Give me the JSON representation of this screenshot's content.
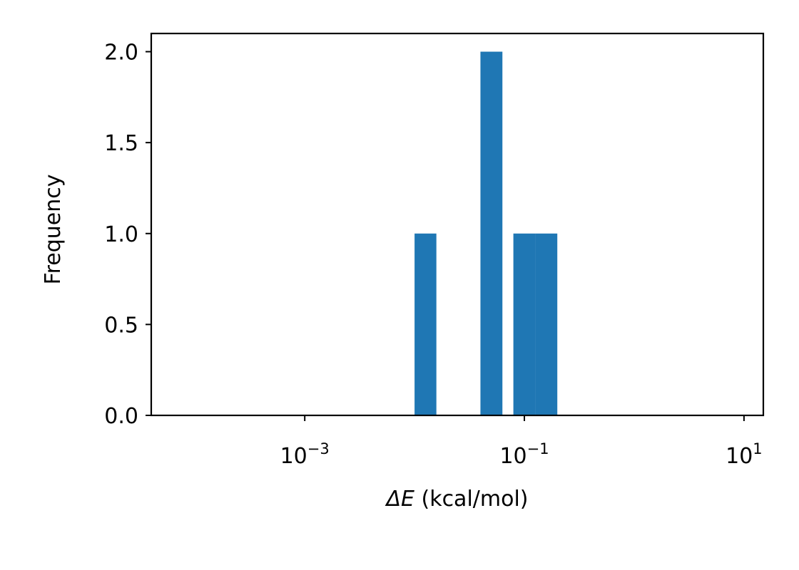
{
  "chart_data": {
    "type": "bar",
    "title": "",
    "xlabel_symbol": "ΔE",
    "xlabel_unit": " (kcal/mol)",
    "ylabel": "Frequency",
    "x_scale": "log",
    "xlim": [
      4e-05,
      15
    ],
    "ylim": [
      0,
      2.1
    ],
    "bar_color": "#1f77b4",
    "grid": false,
    "bins": [
      {
        "x_start": 0.01,
        "x_end": 0.0158,
        "count": 1
      },
      {
        "x_start": 0.0398,
        "x_end": 0.0631,
        "count": 2
      },
      {
        "x_start": 0.0794,
        "x_end": 0.1259,
        "count": 1
      },
      {
        "x_start": 0.1259,
        "x_end": 0.1995,
        "count": 1
      }
    ],
    "y_ticks": [
      {
        "value": 0.0,
        "label": "0.0"
      },
      {
        "value": 0.5,
        "label": "0.5"
      },
      {
        "value": 1.0,
        "label": "1.0"
      },
      {
        "value": 1.5,
        "label": "1.5"
      },
      {
        "value": 2.0,
        "label": "2.0"
      }
    ],
    "x_ticks": [
      {
        "value": 0.001,
        "base": "10",
        "exp": "−3"
      },
      {
        "value": 0.1,
        "base": "10",
        "exp": "−1"
      },
      {
        "value": 10,
        "base": "10",
        "exp": "1"
      }
    ]
  }
}
